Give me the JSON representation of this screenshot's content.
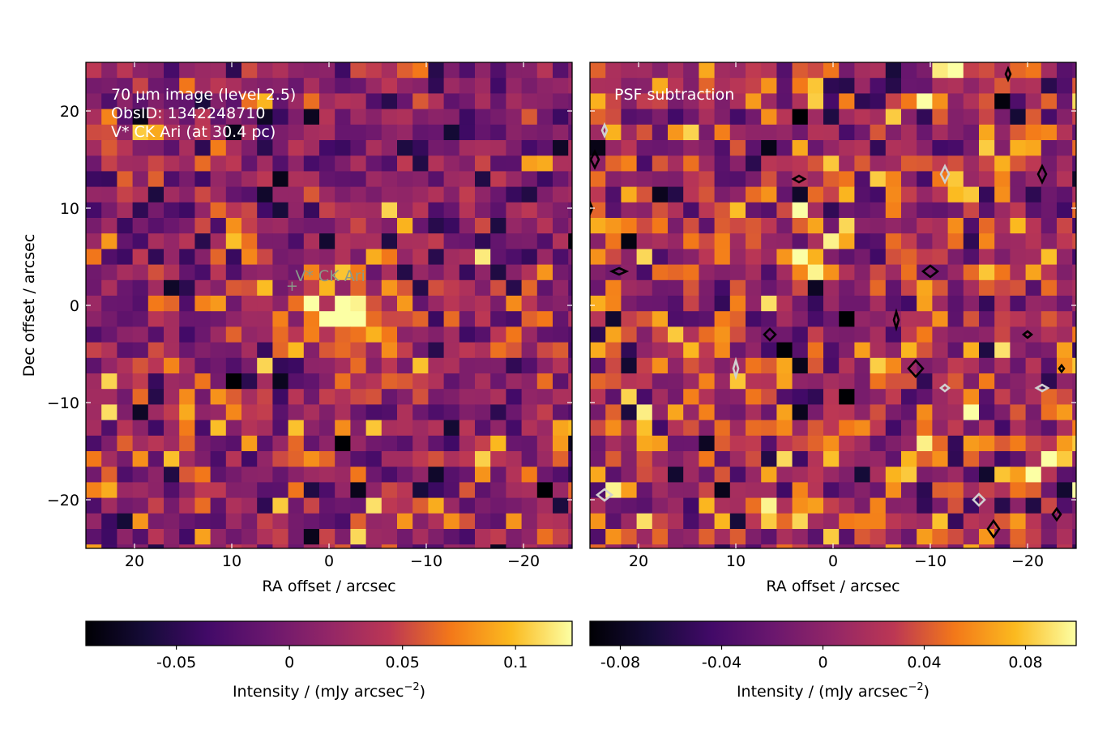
{
  "chart_data": [
    {
      "type": "heatmap",
      "panel": "left",
      "overlay_text": [
        "70 µm image (level 2.5)",
        "ObsID: 1342248710",
        "V* CK Ari (at 30.4 pc)"
      ],
      "marker_label": "V* CK Ari",
      "marker_position": [
        3.8,
        2.0
      ],
      "xlabel": "RA offset / arcsec",
      "ylabel": "Dec offset / arcsec",
      "xlim": [
        25,
        -25
      ],
      "ylim": [
        -25,
        25
      ],
      "xticks": [
        20,
        10,
        0,
        -10,
        -20
      ],
      "xtick_labels": [
        "20",
        "10",
        "0",
        "−10",
        "−20"
      ],
      "yticks": [
        20,
        10,
        0,
        -10,
        -20
      ],
      "ytick_labels": [
        "20",
        "10",
        "0",
        "−10",
        "−20"
      ],
      "grid": false,
      "pixel_size_arcsec": 1.6,
      "colormap": "inferno",
      "colorbar": {
        "label_main": "Intensity / (mJy arcsec",
        "label_exp": "−2",
        "label_end": ")",
        "range": [
          -0.09,
          0.125
        ],
        "ticks": [
          -0.05,
          0,
          0.05,
          0.1
        ],
        "tick_labels": [
          "-0.05",
          "0",
          "0.05",
          "0.1"
        ]
      },
      "source_peak": {
        "x": -1.5,
        "y": -1.0,
        "value": 0.12
      }
    },
    {
      "type": "heatmap",
      "panel": "right",
      "overlay_text": [
        "PSF subtraction"
      ],
      "xlabel": "RA offset / arcsec",
      "xlim": [
        25,
        -25
      ],
      "ylim": [
        -25,
        25
      ],
      "xticks": [
        20,
        10,
        0,
        -10,
        -20
      ],
      "xtick_labels": [
        "20",
        "10",
        "0",
        "−10",
        "−20"
      ],
      "grid": false,
      "pixel_size_arcsec": 1.6,
      "colormap": "inferno",
      "colorbar": {
        "label_main": "Intensity / (mJy arcsec",
        "label_exp": "−2",
        "label_end": ")",
        "range": [
          -0.092,
          0.1
        ],
        "ticks": [
          -0.08,
          -0.04,
          0,
          0.04,
          0.08
        ],
        "tick_labels": [
          "-0.08",
          "-0.04",
          "0",
          "0.04",
          "0.08"
        ]
      },
      "contours": [
        {
          "level": "positive",
          "color": "#000000",
          "centers": [
            [
              -18.0,
              23.8
            ],
            [
              -21.5,
              13.5
            ],
            [
              3.5,
              13.0
            ],
            [
              -10.0,
              3.5
            ],
            [
              -6.5,
              -1.5
            ],
            [
              -20.0,
              -3.0
            ],
            [
              6.5,
              -3.0
            ],
            [
              -8.5,
              -6.5
            ],
            [
              -23.5,
              -6.5
            ],
            [
              -23.0,
              -21.5
            ],
            [
              -16.5,
              -23.0
            ],
            [
              22.0,
              3.5
            ],
            [
              25.0,
              10.0
            ],
            [
              24.5,
              15.0
            ]
          ]
        },
        {
          "level": "negative",
          "color": "#d0d0d0",
          "centers": [
            [
              23.5,
              18.0
            ],
            [
              -11.5,
              13.5
            ],
            [
              -21.5,
              -8.5
            ],
            [
              23.5,
              -19.5
            ],
            [
              10.0,
              -6.5
            ],
            [
              -11.5,
              -8.5
            ],
            [
              -15.0,
              -20.0
            ]
          ]
        }
      ]
    }
  ]
}
